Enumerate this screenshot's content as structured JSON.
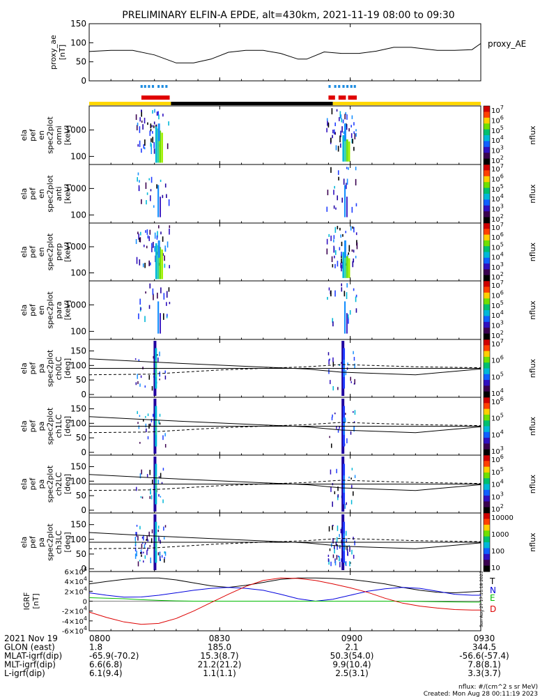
{
  "title": "PRELIMINARY ELFIN-A EPDE, alt=430km, 2021-11-19 08:00 to 09:30",
  "colors": {
    "yellow": "#ffd700",
    "black": "#000000",
    "red": "#e00000",
    "blue": "#1e8ce0",
    "field_T": "#000000",
    "field_N": "#0000dd",
    "field_E": "#00bb00",
    "field_D": "#dd0000"
  },
  "footer": {
    "nflux_units": "nflux: #/(cm^2 s sr MeV)",
    "created": "Created: Mon Aug 28 00:11:19 2023",
    "side_stamp": "Sun Aug 27 17:11:18 2023"
  },
  "ephemeris": {
    "rows": [
      {
        "label": "2021 Nov 19",
        "values": [
          "0800",
          "0830",
          "0900",
          "0930"
        ]
      },
      {
        "label": "GLON (east)",
        "values": [
          "1.8",
          "185.0",
          "2.1",
          "344.5"
        ]
      },
      {
        "label": "MLAT-igrf(dip)",
        "values": [
          "-65.9(-70.2)",
          "15.3(8.7)",
          "50.3(54.0)",
          "-56.6(-57.4)"
        ]
      },
      {
        "label": "MLT-igrf(dip)",
        "values": [
          "6.6(6.8)",
          "21.2(21.2)",
          "9.9(10.4)",
          "7.8(8.1)"
        ]
      },
      {
        "label": "L-igrf(dip)",
        "values": [
          "6.1(9.4)",
          "1.1(1.1)",
          "2.5(3.1)",
          "3.3(3.7)"
        ]
      }
    ]
  },
  "chart_data": [
    {
      "type": "line",
      "id": "proxy_ae",
      "ylabel_lines": [
        "proxy_ae",
        "[nT]"
      ],
      "legend": "proxy_AE",
      "ylim": [
        0,
        150
      ],
      "yticks": [
        "0",
        "50",
        "100",
        "150"
      ],
      "x_minutes": [
        0,
        5,
        10,
        15,
        20,
        24,
        28,
        32,
        36,
        40,
        44,
        48,
        50,
        54,
        58,
        62,
        66,
        70,
        74,
        80,
        84,
        88,
        90
      ],
      "y": [
        77,
        80,
        80,
        68,
        47,
        47,
        57,
        75,
        80,
        80,
        72,
        57,
        57,
        76,
        72,
        72,
        78,
        88,
        88,
        80,
        80,
        82,
        98
      ]
    },
    {
      "type": "bar",
      "id": "status_bars",
      "blue_segments_minutes": [
        [
          11.8,
          12.3
        ],
        [
          12.6,
          13.1
        ],
        [
          13.5,
          14.0
        ],
        [
          14.4,
          14.9
        ],
        [
          15.7,
          16.2
        ],
        [
          16.6,
          17.1
        ],
        [
          17.5,
          18.0
        ],
        [
          55.0,
          55.5
        ],
        [
          56.3,
          56.8
        ],
        [
          57.2,
          57.7
        ],
        [
          58.2,
          58.7
        ],
        [
          59.1,
          59.6
        ],
        [
          60.0,
          60.5
        ],
        [
          60.8,
          61.3
        ]
      ],
      "red_segments_minutes": [
        [
          12.0,
          18.5
        ],
        [
          55.0,
          56.5
        ],
        [
          57.3,
          59.0
        ],
        [
          59.5,
          61.5
        ]
      ],
      "orbit_segments_minutes": [
        {
          "from": 0,
          "to": 18.8,
          "color": "yellow"
        },
        {
          "from": 18.8,
          "to": 56.0,
          "color": "black"
        },
        {
          "from": 56.0,
          "to": 90,
          "color": "yellow"
        }
      ]
    },
    {
      "type": "heatmap",
      "id": "omni",
      "ylabel_lines": [
        "ela",
        "pef",
        "en",
        "spec2plot",
        "omni",
        "[keV]"
      ],
      "yscale": "log",
      "yticks": [
        "100",
        "1000"
      ],
      "colorbar_label": "nflux",
      "colorbar_ticks": [
        "10^2",
        "10^3",
        "10^4",
        "10^5",
        "10^6",
        "10^7"
      ]
    },
    {
      "type": "heatmap",
      "id": "anti",
      "ylabel_lines": [
        "ela",
        "pef",
        "en",
        "spec2plot",
        "anti",
        "[keV]"
      ],
      "yscale": "log",
      "yticks": [
        "100",
        "1000"
      ],
      "colorbar_label": "nflux",
      "colorbar_ticks": [
        "10^2",
        "10^3",
        "10^4",
        "10^5",
        "10^6",
        "10^7"
      ]
    },
    {
      "type": "heatmap",
      "id": "perp",
      "ylabel_lines": [
        "ela",
        "pef",
        "en",
        "spec2plot",
        "perp",
        "[keV]"
      ],
      "yscale": "log",
      "yticks": [
        "100",
        "1000"
      ],
      "colorbar_label": "nflux",
      "colorbar_ticks": [
        "10^2",
        "10^3",
        "10^4",
        "10^5",
        "10^6",
        "10^7"
      ]
    },
    {
      "type": "heatmap",
      "id": "para",
      "ylabel_lines": [
        "ela",
        "pef",
        "en",
        "spec2plot",
        "para",
        "[keV]"
      ],
      "yscale": "log",
      "yticks": [
        "100",
        "1000"
      ],
      "colorbar_label": "nflux",
      "colorbar_ticks": [
        "10^2",
        "10^3",
        "10^4",
        "10^5",
        "10^6",
        "10^7"
      ]
    },
    {
      "type": "heatmap",
      "id": "ch0LC",
      "ylabel_lines": [
        "ela",
        "pef",
        "pa",
        "spec2plot",
        "ch0LC",
        "[deg]"
      ],
      "ylim": [
        0,
        180
      ],
      "yticks": [
        "0",
        "50",
        "100",
        "150"
      ],
      "colorbar_label": "nflux",
      "colorbar_ticks": [
        "10^4",
        "10^5",
        "10^6",
        "10^7"
      ]
    },
    {
      "type": "heatmap",
      "id": "ch1LC",
      "ylabel_lines": [
        "ela",
        "pef",
        "pa",
        "spec2plot",
        "ch1LC",
        "[deg]"
      ],
      "ylim": [
        0,
        180
      ],
      "yticks": [
        "0",
        "50",
        "100",
        "150"
      ],
      "colorbar_label": "nflux",
      "colorbar_ticks": [
        "10^3",
        "10^4",
        "10^5",
        "10^6"
      ]
    },
    {
      "type": "heatmap",
      "id": "ch2LC",
      "ylabel_lines": [
        "ela",
        "pef",
        "pa",
        "spec2plot",
        "ch2LC",
        "[deg]"
      ],
      "ylim": [
        0,
        180
      ],
      "yticks": [
        "0",
        "50",
        "100",
        "150"
      ],
      "colorbar_label": "nflux",
      "colorbar_ticks": [
        "10^2",
        "10^3",
        "10^4",
        "10^5",
        "10^6"
      ]
    },
    {
      "type": "heatmap",
      "id": "ch3LC",
      "ylabel_lines": [
        "ela",
        "pef",
        "pa",
        "spec2plot",
        "ch3LC",
        "[deg]"
      ],
      "ylim": [
        0,
        180
      ],
      "yticks": [
        "0",
        "50",
        "100",
        "150"
      ],
      "colorbar_label": "nflux",
      "colorbar_ticks": [
        "10",
        "100",
        "1000",
        "10000"
      ]
    },
    {
      "type": "line",
      "id": "igrf",
      "ylabel_lines": [
        "IGRF",
        "[nT]"
      ],
      "ylim": [
        -60000,
        60000
      ],
      "yticks": [
        "-6×10^4",
        "-4×10^4",
        "-2×10^4",
        "0",
        "2×10^4",
        "4×10^4",
        "6×10^4"
      ],
      "legend": [
        "T",
        "N",
        "E",
        "D"
      ],
      "x_minutes": [
        0,
        4,
        8,
        12,
        16,
        20,
        24,
        28,
        32,
        36,
        40,
        44,
        48,
        52,
        56,
        60,
        64,
        68,
        72,
        76,
        80,
        84,
        88,
        90
      ],
      "series": [
        {
          "name": "T",
          "values": [
            35000,
            40000,
            44000,
            47000,
            47000,
            43000,
            37000,
            31000,
            28000,
            32000,
            38000,
            44000,
            47000,
            47000,
            46000,
            44000,
            40000,
            35000,
            28000,
            22000,
            18000,
            17000,
            19000,
            20000
          ]
        },
        {
          "name": "N",
          "values": [
            17000,
            12000,
            8000,
            8500,
            12000,
            17000,
            22000,
            26000,
            28000,
            26000,
            22000,
            14000,
            5000,
            0,
            4000,
            12000,
            20000,
            25000,
            28000,
            26000,
            20000,
            14000,
            12000,
            12000
          ]
        },
        {
          "name": "E",
          "values": [
            7000,
            6000,
            5000,
            3000,
            1500,
            500,
            0,
            0,
            0,
            0,
            0,
            0,
            0,
            0,
            0,
            0,
            0,
            0,
            0,
            -500,
            -1000,
            -1500,
            -2000,
            -2000
          ]
        },
        {
          "name": "D",
          "values": [
            -22000,
            -33000,
            -42000,
            -47000,
            -45000,
            -35000,
            -20000,
            -3000,
            14000,
            30000,
            42000,
            47000,
            46000,
            42000,
            35000,
            27000,
            18000,
            6000,
            -4000,
            -10000,
            -14000,
            -17000,
            -18000,
            -18000
          ]
        }
      ]
    }
  ]
}
